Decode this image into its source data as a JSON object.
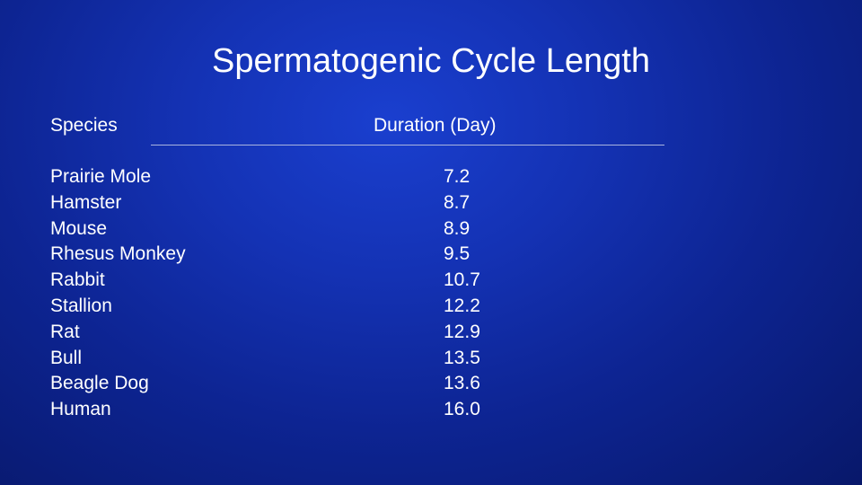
{
  "slide": {
    "title": "Spermatogenic Cycle Length",
    "headers": {
      "species": "Species",
      "duration": "Duration (Day)"
    },
    "rows": [
      {
        "species": "Prairie Mole",
        "duration": "7.2"
      },
      {
        "species": "Hamster",
        "duration": "8.7"
      },
      {
        "species": "Mouse",
        "duration": "8.9"
      },
      {
        "species": "Rhesus Monkey",
        "duration": "9.5"
      },
      {
        "species": "Rabbit",
        "duration": "10.7"
      },
      {
        "species": "Stallion",
        "duration": "12.2"
      },
      {
        "species": "Rat",
        "duration": "12.9"
      },
      {
        "species": "Bull",
        "duration": "13.5"
      },
      {
        "species": "Beagle Dog",
        "duration": "13.6"
      },
      {
        "species": "Human",
        "duration": "16.0"
      }
    ]
  },
  "colors": {
    "background_center": "#1a3fcf",
    "background_edge": "#08186a",
    "text": "#ffffff"
  }
}
